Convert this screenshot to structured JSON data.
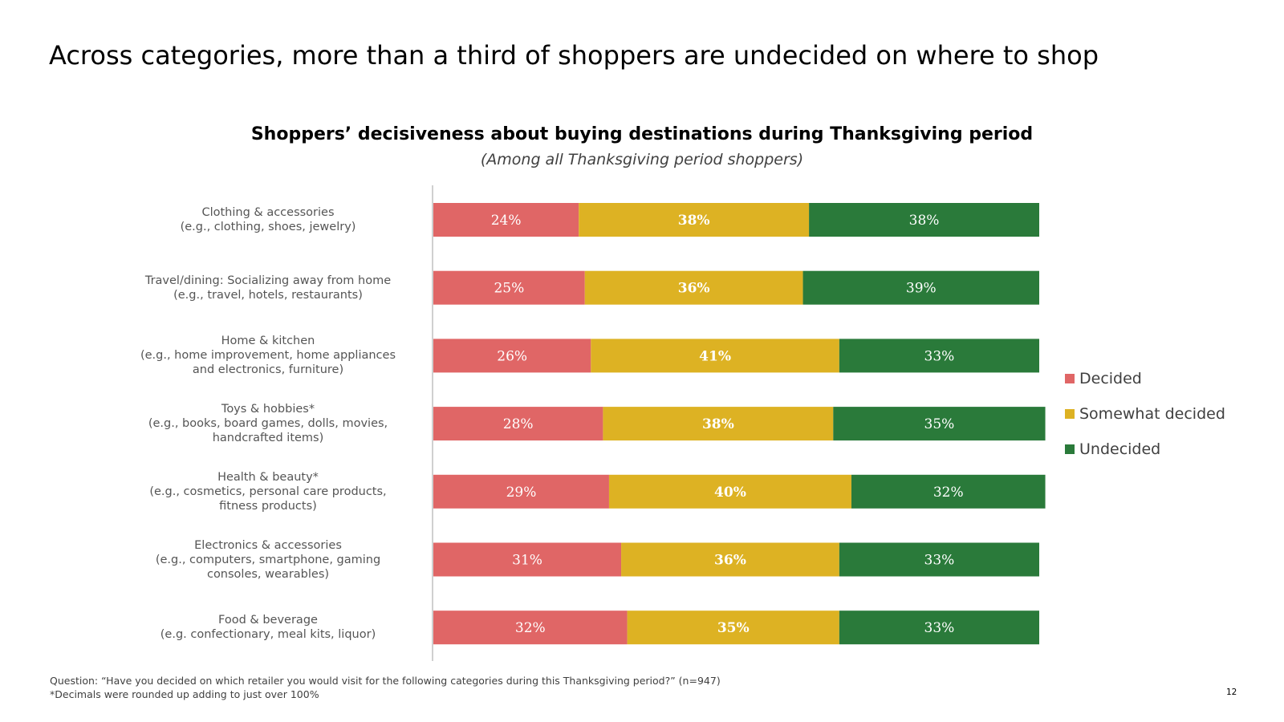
{
  "slide": {
    "title": "Across categories, more than a third of shoppers are undecided on where to shop",
    "page_number": "12"
  },
  "footnote": {
    "question": "Question: “Have you decided on which retailer you would visit for the following categories during this Thanksgiving period?” (n=947)",
    "note": "*Decimals were rounded up adding to just over 100%"
  },
  "chart_data": {
    "type": "bar",
    "orientation": "horizontal",
    "stacked": true,
    "title": "Shoppers’ decisiveness about buying destinations during Thanksgiving period",
    "subtitle": "(Among all Thanksgiving period shoppers)",
    "legend_position": "right",
    "xlim": [
      0,
      100
    ],
    "categories": [
      [
        "Clothing & accessories",
        "(e.g., clothing, shoes, jewelry)"
      ],
      [
        "Travel/dining: Socializing away from home",
        "(e.g., travel, hotels, restaurants)"
      ],
      [
        "Home & kitchen",
        "(e.g., home improvement, home appliances",
        "and electronics, furniture)"
      ],
      [
        "Toys & hobbies*",
        "(e.g., books, board games, dolls, movies,",
        "handcrafted items)"
      ],
      [
        "Health & beauty*",
        "(e.g., cosmetics, personal care products,",
        "fitness products)"
      ],
      [
        "Electronics & accessories",
        "(e.g., computers, smartphone, gaming",
        "consoles, wearables)"
      ],
      [
        "Food & beverage",
        "(e.g. confectionary, meal kits, liquor)"
      ]
    ],
    "series": [
      {
        "name": "Decided",
        "color": "#E06666",
        "values": [
          24,
          25,
          26,
          28,
          29,
          31,
          32
        ],
        "labels": [
          "24%",
          "25%",
          "26%",
          "28%",
          "29%",
          "31%",
          "32%"
        ],
        "label_bold": false
      },
      {
        "name": "Somewhat decided",
        "color": "#DDB223",
        "values": [
          38,
          36,
          41,
          38,
          40,
          36,
          35
        ],
        "labels": [
          "38%",
          "36%",
          "41%",
          "38%",
          "40%",
          "36%",
          "35%"
        ],
        "label_bold": true
      },
      {
        "name": "Undecided",
        "color": "#2A7A3A",
        "values": [
          38,
          39,
          33,
          35,
          32,
          33,
          33
        ],
        "labels": [
          "38%",
          "39%",
          "33%",
          "35%",
          "32%",
          "33%",
          "33%"
        ],
        "label_bold": false
      }
    ]
  }
}
